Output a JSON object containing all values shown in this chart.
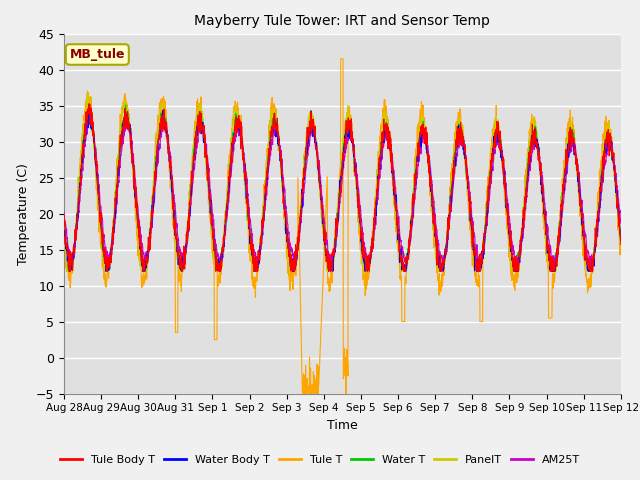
{
  "title": "Mayberry Tule Tower: IRT and Sensor Temp",
  "xlabel": "Time",
  "ylabel": "Temperature (C)",
  "ylim": [
    -5,
    45
  ],
  "yticks": [
    -5,
    0,
    5,
    10,
    15,
    20,
    25,
    30,
    35,
    40,
    45
  ],
  "x_labels": [
    "Aug 28",
    "Aug 29",
    "Aug 30",
    "Aug 31",
    "Sep 1",
    "Sep 2",
    "Sep 3",
    "Sep 4",
    "Sep 5",
    "Sep 6",
    "Sep 7",
    "Sep 8",
    "Sep 9",
    "Sep 10",
    "Sep 11",
    "Sep 12"
  ],
  "series_colors": {
    "Tule Body T": "#ff0000",
    "Water Body T": "#0000ff",
    "Tule T": "#ffa500",
    "Water T": "#00cc00",
    "PanelT": "#cccc00",
    "AM25T": "#cc00cc"
  },
  "legend_label": "MB_tule",
  "plot_bg_color": "#e0e0e0"
}
